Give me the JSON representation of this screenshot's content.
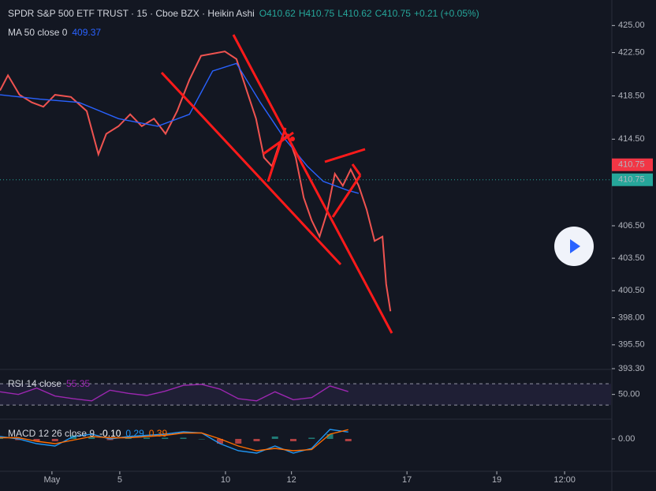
{
  "chart_data": [
    {
      "type": "line",
      "title": "SPDR S&P 500 ETF TRUST · 15 · Cboe BZX · Heikin Ashi",
      "quote": [
        "O410.62",
        "H410.75",
        "L410.62",
        "C410.75",
        "+0.21 (+0.05%)"
      ],
      "xlim": [
        0,
        100
      ],
      "ylim": [
        393.3,
        425.9
      ],
      "xticks": [
        {
          "value": 8.5,
          "label": "May"
        },
        {
          "value": 19.6,
          "label": "5"
        },
        {
          "value": 36.9,
          "label": "10"
        },
        {
          "value": 47.7,
          "label": "12"
        },
        {
          "value": 66.6,
          "label": "17"
        },
        {
          "value": 81.3,
          "label": "19"
        },
        {
          "value": 92.4,
          "label": "12:00"
        }
      ],
      "yticks": [
        {
          "value": 425,
          "label": "425.00"
        },
        {
          "value": 422.5,
          "label": "422.50"
        },
        {
          "value": 418.5,
          "label": "418.50"
        },
        {
          "value": 414.5,
          "label": "414.50"
        },
        {
          "value": 406.5,
          "label": "406.50"
        },
        {
          "value": 403.5,
          "label": "403.50"
        },
        {
          "value": 400.5,
          "label": "400.50"
        },
        {
          "value": 398,
          "label": "398.00"
        },
        {
          "value": 395.5,
          "label": "395.50"
        },
        {
          "value": 393.3,
          "label": "393.30"
        }
      ],
      "price_labels": [
        {
          "value": 410.75,
          "label": "410.75",
          "color": "#f23645"
        },
        {
          "value": 410.75,
          "label": "410.75",
          "color": "#26a69a"
        }
      ],
      "series": [
        {
          "color": "#ef5350",
          "x": [
            0,
            1.3,
            3.2,
            5.2,
            7.1,
            9,
            11.6,
            14.2,
            16.1,
            17.4,
            19.4,
            21.3,
            23.2,
            25.2,
            27.1,
            29,
            31,
            32.9,
            34.8,
            36.8,
            38.7,
            40.6,
            41.9,
            43.2,
            44.5,
            45.8,
            47.1,
            48.4,
            49.7,
            51,
            52.3,
            53.5,
            54.8,
            56.1,
            57.4,
            58.7,
            60,
            61.3,
            62.6,
            63.2,
            63.9
          ],
          "values": [
            419.0,
            420.4,
            418.6,
            417.9,
            417.5,
            418.6,
            418.4,
            417.1,
            413.1,
            415.0,
            415.7,
            416.8,
            415.7,
            416.4,
            415.0,
            417.1,
            420.0,
            422.2,
            422.4,
            422.6,
            421.9,
            418.6,
            416.4,
            412.8,
            412.0,
            414.2,
            414.9,
            412.8,
            409.1,
            407.0,
            405.5,
            407.7,
            411.3,
            410.2,
            411.7,
            410.2,
            408.0,
            405.1,
            405.5,
            401.1,
            398.6
          ]
        },
        {
          "name": "MA 50 close 0",
          "last": 409.37,
          "color": "#2962ff",
          "x": [
            0,
            6.5,
            12.9,
            19.4,
            25.8,
            31,
            34.8,
            38.7,
            42.6,
            46.5,
            50.3,
            52.9,
            56.8,
            58.7
          ],
          "values": [
            418.6,
            418.2,
            417.9,
            416.4,
            415.7,
            416.8,
            420.8,
            421.5,
            417.9,
            414.6,
            412.0,
            410.6,
            409.8,
            409.5
          ]
        }
      ]
    },
    {
      "type": "line",
      "xlim": [
        0,
        100
      ],
      "ylim": [
        8,
        94
      ],
      "yticks": [
        {
          "value": 50,
          "label": "50.00"
        }
      ],
      "bands": [
        30,
        70
      ],
      "series": [
        {
          "name": "RSI 14 close",
          "last": 55.35,
          "color": "#9c27b0",
          "x": [
            0,
            3,
            6,
            9,
            12,
            15,
            18,
            21,
            24,
            27,
            30,
            33,
            36,
            39,
            42,
            45,
            48,
            51,
            54,
            57
          ],
          "values": [
            55,
            50,
            62,
            47,
            42,
            38,
            58,
            52,
            48,
            56,
            67,
            69,
            60,
            42,
            38,
            55,
            40,
            44,
            66,
            55.35
          ]
        }
      ]
    },
    {
      "type": "line",
      "title": "MACD 12 26 close 9",
      "xlim": [
        0,
        100
      ],
      "ylim": [
        -1.3,
        0.7
      ],
      "yticks": [
        {
          "value": 0,
          "label": "0.00"
        }
      ],
      "series": [
        {
          "style": "histogram",
          "last": {
            "value": -0.1,
            "label": "-0.10"
          },
          "color": "#d1d4dc",
          "x": [
            0,
            3,
            6,
            9,
            12,
            15,
            18,
            21,
            24,
            27,
            30,
            33,
            36,
            39,
            42,
            45,
            48,
            51,
            54,
            57
          ],
          "values": [
            0.05,
            -0.05,
            -0.1,
            -0.1,
            0.15,
            0.1,
            -0.05,
            0.05,
            0.05,
            0.05,
            0.05,
            0,
            -0.2,
            -0.2,
            -0.1,
            0.1,
            -0.1,
            0.05,
            0.2,
            -0.1
          ]
        },
        {
          "last": 0.29,
          "color": "#2196f3",
          "x": [
            0,
            3,
            6,
            9,
            12,
            15,
            18,
            21,
            24,
            27,
            30,
            33,
            36,
            39,
            42,
            45,
            48,
            51,
            54,
            57
          ],
          "values": [
            0.1,
            0.0,
            -0.2,
            -0.3,
            0.1,
            0.2,
            0.0,
            0.1,
            0.15,
            0.2,
            0.3,
            0.25,
            -0.2,
            -0.5,
            -0.6,
            -0.3,
            -0.6,
            -0.4,
            0.4,
            0.29
          ]
        },
        {
          "last": 0.39,
          "color": "#ff6d00",
          "x": [
            0,
            3,
            6,
            9,
            12,
            15,
            18,
            21,
            24,
            27,
            30,
            33,
            36,
            39,
            42,
            45,
            48,
            51,
            54,
            57
          ],
          "values": [
            0.05,
            0.05,
            -0.1,
            -0.2,
            -0.05,
            0.1,
            0.05,
            0.05,
            0.1,
            0.15,
            0.25,
            0.25,
            0.0,
            -0.3,
            -0.5,
            -0.4,
            -0.5,
            -0.45,
            0.2,
            0.39
          ]
        }
      ]
    }
  ]
}
